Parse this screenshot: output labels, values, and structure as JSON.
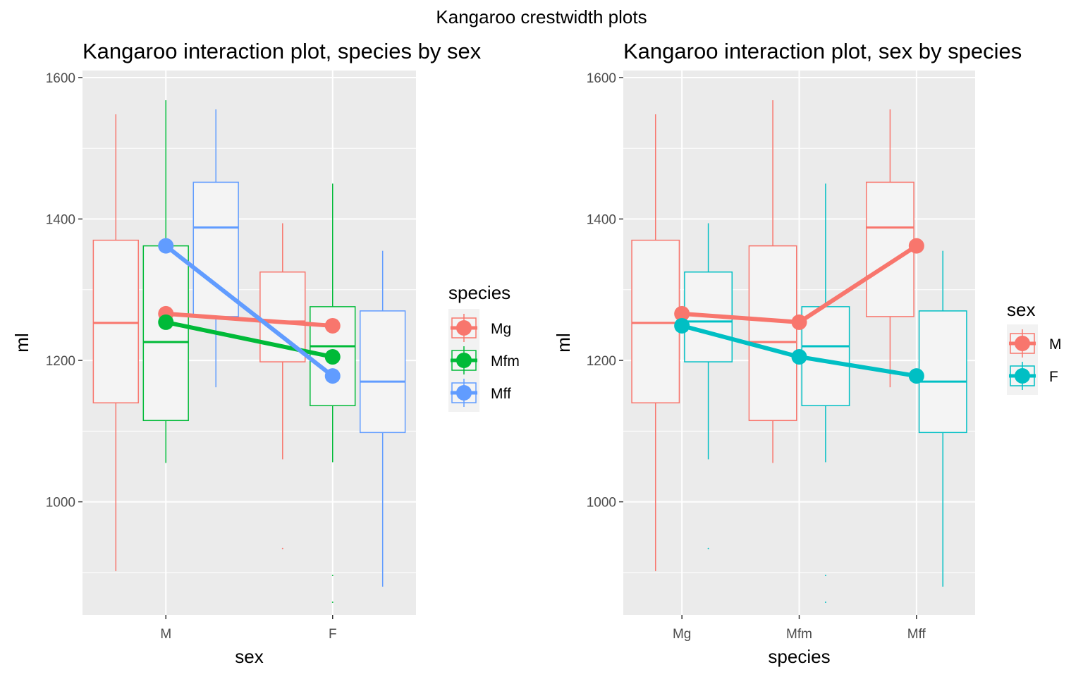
{
  "figure": {
    "title": "Kangaroo crestwidth plots"
  },
  "chart_data": [
    {
      "type": "box",
      "title": "Kangaroo interaction plot, species by sex",
      "xlabel": "sex",
      "ylabel": "ml",
      "ylim": [
        840,
        1610
      ],
      "yticks": [
        1000,
        1200,
        1400,
        1600
      ],
      "categories": [
        "M",
        "F"
      ],
      "legend": {
        "title": "species",
        "position": "right",
        "entries": [
          "Mg",
          "Mfm",
          "Mff"
        ]
      },
      "colors": {
        "Mg": "#F8766D",
        "Mfm": "#00BA38",
        "Mff": "#619CFF"
      },
      "groups": [
        "Mg",
        "Mfm",
        "Mff"
      ],
      "boxes": [
        {
          "category": "M",
          "group": "Mg",
          "whisker_low": 902,
          "q1": 1140,
          "median": 1253,
          "q3": 1370,
          "whisker_high": 1548,
          "outliers": []
        },
        {
          "category": "M",
          "group": "Mfm",
          "whisker_low": 1055,
          "q1": 1115,
          "median": 1226,
          "q3": 1362,
          "whisker_high": 1568,
          "outliers": []
        },
        {
          "category": "M",
          "group": "Mff",
          "whisker_low": 1162,
          "q1": 1262,
          "median": 1388,
          "q3": 1452,
          "whisker_high": 1555,
          "outliers": []
        },
        {
          "category": "F",
          "group": "Mg",
          "whisker_low": 1060,
          "q1": 1198,
          "median": 1255,
          "q3": 1325,
          "whisker_high": 1394,
          "outliers": [
            934
          ]
        },
        {
          "category": "F",
          "group": "Mfm",
          "whisker_low": 1056,
          "q1": 1136,
          "median": 1220,
          "q3": 1276,
          "whisker_high": 1450,
          "outliers": [
            896,
            858
          ]
        },
        {
          "category": "F",
          "group": "Mff",
          "whisker_low": 880,
          "q1": 1098,
          "median": 1170,
          "q3": 1270,
          "whisker_high": 1355,
          "outliers": []
        }
      ],
      "series": [
        {
          "name": "Mg",
          "values": [
            1266,
            1249
          ]
        },
        {
          "name": "Mfm",
          "values": [
            1254,
            1205
          ]
        },
        {
          "name": "Mff",
          "values": [
            1362,
            1178
          ]
        }
      ]
    },
    {
      "type": "box",
      "title": "Kangaroo interaction plot, sex by species",
      "xlabel": "species",
      "ylabel": "ml",
      "ylim": [
        840,
        1610
      ],
      "yticks": [
        1000,
        1200,
        1400,
        1600
      ],
      "categories": [
        "Mg",
        "Mfm",
        "Mff"
      ],
      "legend": {
        "title": "sex",
        "position": "right",
        "entries": [
          "M",
          "F"
        ]
      },
      "colors": {
        "M": "#F8766D",
        "F": "#00BFC4"
      },
      "groups": [
        "M",
        "F"
      ],
      "boxes": [
        {
          "category": "Mg",
          "group": "M",
          "whisker_low": 902,
          "q1": 1140,
          "median": 1253,
          "q3": 1370,
          "whisker_high": 1548,
          "outliers": []
        },
        {
          "category": "Mg",
          "group": "F",
          "whisker_low": 1060,
          "q1": 1198,
          "median": 1255,
          "q3": 1325,
          "whisker_high": 1394,
          "outliers": [
            934
          ]
        },
        {
          "category": "Mfm",
          "group": "M",
          "whisker_low": 1055,
          "q1": 1115,
          "median": 1226,
          "q3": 1362,
          "whisker_high": 1568,
          "outliers": []
        },
        {
          "category": "Mfm",
          "group": "F",
          "whisker_low": 1056,
          "q1": 1136,
          "median": 1220,
          "q3": 1276,
          "whisker_high": 1450,
          "outliers": [
            896,
            858
          ]
        },
        {
          "category": "Mff",
          "group": "M",
          "whisker_low": 1162,
          "q1": 1262,
          "median": 1388,
          "q3": 1452,
          "whisker_high": 1555,
          "outliers": []
        },
        {
          "category": "Mff",
          "group": "F",
          "whisker_low": 880,
          "q1": 1098,
          "median": 1170,
          "q3": 1270,
          "whisker_high": 1355,
          "outliers": []
        }
      ],
      "series": [
        {
          "name": "M",
          "values": [
            1266,
            1254,
            1362
          ]
        },
        {
          "name": "F",
          "values": [
            1249,
            1205,
            1178
          ]
        }
      ]
    }
  ]
}
